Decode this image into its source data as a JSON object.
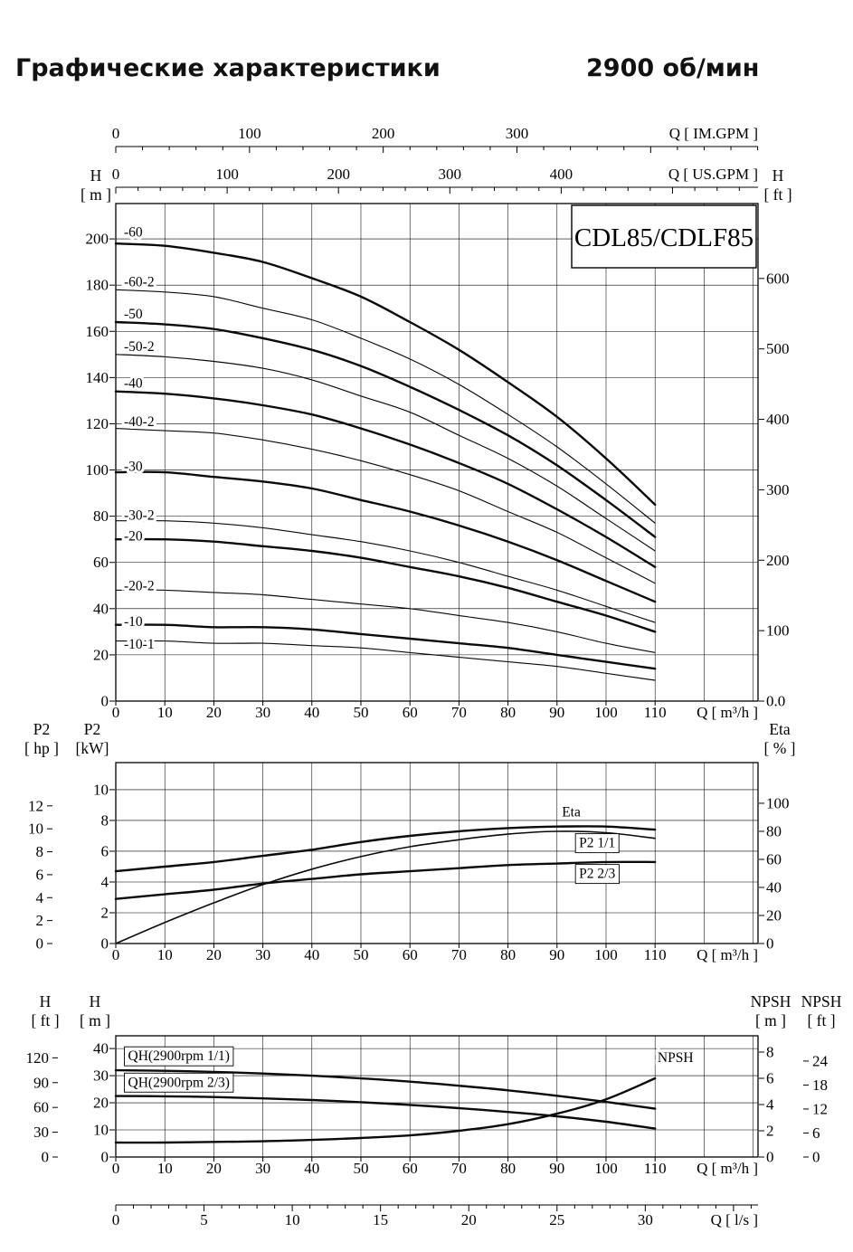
{
  "page": {
    "title": "Графические характеристики",
    "rpm": "2900 об/мин"
  },
  "model_box": {
    "label": "CDL85/CDLF85"
  },
  "chart_data": [
    {
      "id": "main_hq",
      "type": "line",
      "title": "CDL85/CDLF85 head curves",
      "x_label": "Q [ m³/h ]",
      "x_ticks": [
        0,
        10,
        20,
        30,
        40,
        50,
        60,
        70,
        80,
        90,
        100,
        110
      ],
      "x_top_axes": [
        {
          "label": "Q [ IM.GPM ]",
          "unit": "IM.GPM",
          "ticks": [
            0,
            100,
            200,
            300
          ]
        },
        {
          "label": "Q [ US.GPM ]",
          "unit": "US.GPM",
          "ticks": [
            0,
            100,
            200,
            300,
            400
          ]
        }
      ],
      "y_left": {
        "header": [
          "H",
          "[ m ]"
        ],
        "ticks": [
          0,
          20,
          40,
          60,
          80,
          100,
          120,
          140,
          160,
          180,
          200
        ]
      },
      "y_right": {
        "header": [
          "H",
          "[ ft ]"
        ],
        "tick_values": [
          0,
          100,
          200,
          300,
          400,
          500,
          600
        ],
        "tick_labels": [
          "0.0",
          "100",
          "200",
          "300",
          "400",
          "500",
          "600"
        ]
      },
      "x": [
        0,
        10,
        20,
        30,
        40,
        50,
        60,
        70,
        80,
        90,
        100,
        110
      ],
      "series": [
        {
          "name": "-60",
          "weight": "bold",
          "label_h": 203,
          "values": [
            198,
            197,
            194,
            190,
            183,
            175,
            164,
            152,
            138,
            123,
            105,
            85
          ]
        },
        {
          "name": "-60-2",
          "weight": "thin",
          "label_h": 181.5,
          "values": [
            178,
            177,
            175,
            170,
            165,
            157,
            148,
            137,
            124,
            110,
            94,
            77
          ]
        },
        {
          "name": "-50",
          "weight": "bold",
          "label_h": 167.5,
          "values": [
            164,
            163,
            161,
            157,
            152,
            145,
            136,
            126,
            115,
            102,
            87,
            71
          ]
        },
        {
          "name": "-50-2",
          "weight": "thin",
          "label_h": 153.5,
          "values": [
            150,
            149,
            147,
            144,
            139,
            132,
            125,
            115,
            105,
            93,
            79,
            65
          ]
        },
        {
          "name": "-40",
          "weight": "bold",
          "label_h": 137.5,
          "values": [
            134,
            133,
            131,
            128,
            124,
            118,
            111,
            103,
            94,
            83,
            71,
            58
          ]
        },
        {
          "name": "-40-2",
          "weight": "thin",
          "label_h": 121,
          "values": [
            118,
            117,
            116,
            113,
            109,
            104,
            98,
            91,
            82,
            73,
            62,
            51
          ]
        },
        {
          "name": "-30",
          "weight": "bold",
          "label_h": 101.5,
          "values": [
            99,
            99,
            97,
            95,
            92,
            87,
            82,
            76,
            69,
            61,
            52,
            43
          ]
        },
        {
          "name": "-30-2",
          "weight": "thin",
          "label_h": 80.5,
          "values": [
            78,
            78,
            77,
            75,
            72,
            69,
            65,
            60,
            54,
            48,
            41,
            34
          ]
        },
        {
          "name": "-20",
          "weight": "bold",
          "label_h": 71.5,
          "values": [
            70,
            70,
            69,
            67,
            65,
            62,
            58,
            54,
            49,
            43,
            37,
            30
          ]
        },
        {
          "name": "-20-2",
          "weight": "thin",
          "label_h": 50,
          "values": [
            48,
            48,
            47,
            46,
            44,
            42,
            40,
            37,
            34,
            30,
            25,
            21
          ]
        },
        {
          "name": "-10",
          "weight": "bold",
          "label_h": 34.5,
          "values": [
            33,
            33,
            32,
            32,
            31,
            29,
            27,
            25,
            23,
            20,
            17,
            14
          ]
        },
        {
          "name": "-10-1",
          "weight": "thin",
          "label_h": 24.6,
          "values": [
            26,
            26,
            25,
            25,
            24,
            23,
            21,
            19,
            17,
            15,
            12,
            9
          ]
        }
      ]
    },
    {
      "id": "power_efficiency",
      "type": "line",
      "title": "P2 and Eta curves",
      "x_label": "Q [ m³/h ]",
      "x_ticks": [
        0,
        10,
        20,
        30,
        40,
        50,
        60,
        70,
        80,
        90,
        100,
        110
      ],
      "y_left_outer": {
        "header": [
          "P2",
          "[ hp ]"
        ],
        "ticks": [
          0,
          2,
          4,
          6,
          8,
          10,
          12
        ],
        "unit": "hp"
      },
      "y_left": {
        "header": [
          "P2",
          "[kW]"
        ],
        "ticks": [
          0,
          2,
          4,
          6,
          8,
          10
        ]
      },
      "y_right": {
        "header": [
          "Eta",
          "[ % ]"
        ],
        "ticks": [
          0,
          20,
          40,
          60,
          80,
          100
        ],
        "unit": "eta"
      },
      "x": [
        0,
        10,
        20,
        30,
        40,
        50,
        60,
        70,
        80,
        90,
        100,
        110
      ],
      "series": [
        {
          "name": "Eta",
          "axis": "eta",
          "weight": "medium",
          "values": [
            0,
            15,
            29,
            42,
            53,
            62,
            69,
            74,
            78,
            80,
            79,
            75
          ],
          "label": {
            "text": "Eta",
            "q": 91,
            "v": 8.55,
            "axis": "kw",
            "boxed": false
          }
        },
        {
          "name": "P2 1/1",
          "axis": "kw",
          "weight": "bold",
          "values": [
            4.7,
            5.0,
            5.3,
            5.7,
            6.1,
            6.6,
            7.0,
            7.3,
            7.5,
            7.6,
            7.6,
            7.4
          ],
          "label": {
            "text": "P2  1/1",
            "q": 94.5,
            "v": 6.55,
            "axis": "kw",
            "boxed": true
          }
        },
        {
          "name": "P2 2/3",
          "axis": "kw",
          "weight": "bold",
          "values": [
            2.9,
            3.2,
            3.5,
            3.9,
            4.2,
            4.5,
            4.7,
            4.9,
            5.1,
            5.2,
            5.3,
            5.3
          ],
          "label": {
            "text": "P2  2/3",
            "q": 94.5,
            "v": 4.55,
            "axis": "kw",
            "boxed": true
          }
        }
      ]
    },
    {
      "id": "qh_npsh",
      "type": "line",
      "title": "QH and NPSH curves",
      "x_label": "Q [ m³/h ]",
      "x_ticks": [
        0,
        10,
        20,
        30,
        40,
        50,
        60,
        70,
        80,
        90,
        100,
        110
      ],
      "x_bottom2": {
        "label": "Q [ l/s ]",
        "ticks": [
          0,
          5,
          10,
          15,
          20,
          25,
          30
        ],
        "unit": "l/s"
      },
      "y_left_outer": {
        "header": [
          "H",
          "[ ft ]"
        ],
        "ticks": [
          0,
          30,
          60,
          90,
          120
        ],
        "unit": "ft"
      },
      "y_left": {
        "header": [
          "H",
          "[ m ]"
        ],
        "ticks": [
          0,
          10,
          20,
          30,
          40
        ]
      },
      "y_right": {
        "header": [
          "NPSH",
          "[ m ]"
        ],
        "ticks": [
          0,
          2,
          4,
          6,
          8
        ],
        "unit": "npsh_m"
      },
      "y_right_outer": {
        "header": [
          "NPSH",
          "[ ft ]"
        ],
        "ticks": [
          0,
          6,
          12,
          18,
          24
        ],
        "unit": "npsh_ft"
      },
      "x": [
        0,
        10,
        20,
        30,
        40,
        50,
        60,
        70,
        80,
        90,
        100,
        110
      ],
      "series": [
        {
          "name": "QH(2900rpm 1/1)",
          "axis": "m",
          "weight": "bold",
          "values": [
            32,
            31.8,
            31.4,
            30.8,
            30,
            29,
            27.8,
            26.3,
            24.6,
            22.6,
            20.3,
            17.8
          ],
          "label": {
            "text": "QH(2900rpm 1/1)",
            "q": 2.5,
            "v": 37.3,
            "axis": "m",
            "boxed": true
          }
        },
        {
          "name": "QH(2900rpm 2/3)",
          "axis": "m",
          "weight": "bold",
          "values": [
            22.5,
            22.4,
            22.1,
            21.6,
            21,
            20.2,
            19.2,
            18,
            16.6,
            15,
            13,
            10.5
          ],
          "label": {
            "text": "QH(2900rpm 2/3)",
            "q": 2.5,
            "v": 27.6,
            "axis": "m",
            "boxed": true
          }
        },
        {
          "name": "NPSH",
          "axis": "npsh",
          "weight": "bold",
          "values": [
            1.1,
            1.1,
            1.15,
            1.2,
            1.3,
            1.45,
            1.65,
            2.0,
            2.5,
            3.3,
            4.4,
            6.0
          ],
          "label": {
            "text": "NPSH",
            "q": 110.5,
            "v": 7.6,
            "axis": "npsh",
            "boxed": false
          }
        }
      ]
    }
  ]
}
